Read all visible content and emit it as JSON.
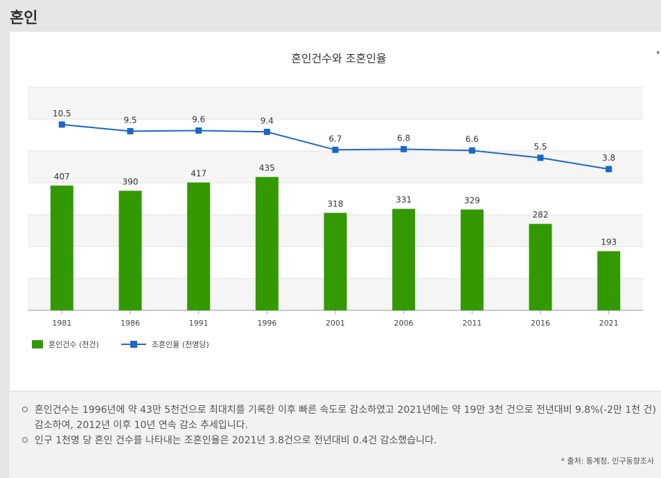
{
  "page": {
    "title": "혼인"
  },
  "chart_data": {
    "type": "bar",
    "title": "혼인건수와 조혼인율",
    "categories": [
      "1981",
      "1986",
      "1991",
      "1996",
      "2001",
      "2006",
      "2011",
      "2016",
      "2021"
    ],
    "series": [
      {
        "name": "혼인건수 (천건)",
        "type": "bar",
        "color": "#339900",
        "values": [
          407,
          390,
          417,
          435,
          318,
          331,
          329,
          282,
          193
        ]
      },
      {
        "name": "조혼인율 (천명당)",
        "type": "line",
        "color": "#1a66cc",
        "values": [
          10.5,
          9.5,
          9.6,
          9.4,
          6.7,
          6.8,
          6.6,
          5.5,
          3.8
        ],
        "labels": [
          "10.5",
          "9.5",
          "9.6",
          "9.4",
          "6.7",
          "6.8",
          "6.6",
          "5.5",
          "3.8"
        ]
      }
    ],
    "xlabel": "",
    "ylabel": "",
    "grid": true,
    "legend": "bottom-left"
  },
  "legend": {
    "bar_label": "혼인건수 (천건)",
    "line_label": "조혼인율 (천명당)"
  },
  "notes": {
    "items": [
      "혼인건수는 1996년에 약 43만 5천건으로 최대치를 기록한 이후 빠른 속도로 감소하였고 2021년에는 약 19만 3천 건으로 전년대비 9.8%(-2만 1천 건) 감소하여, 2012년 이후 10년 연속 감소 추세입니다.",
      "인구 1천명 당 혼인 건수를 나타내는 조혼인율은 2021년 3.8건으로 전년대비 0.4건 감소했습니다."
    ],
    "source": "* 출처: 통계청, 인구동향조사"
  }
}
